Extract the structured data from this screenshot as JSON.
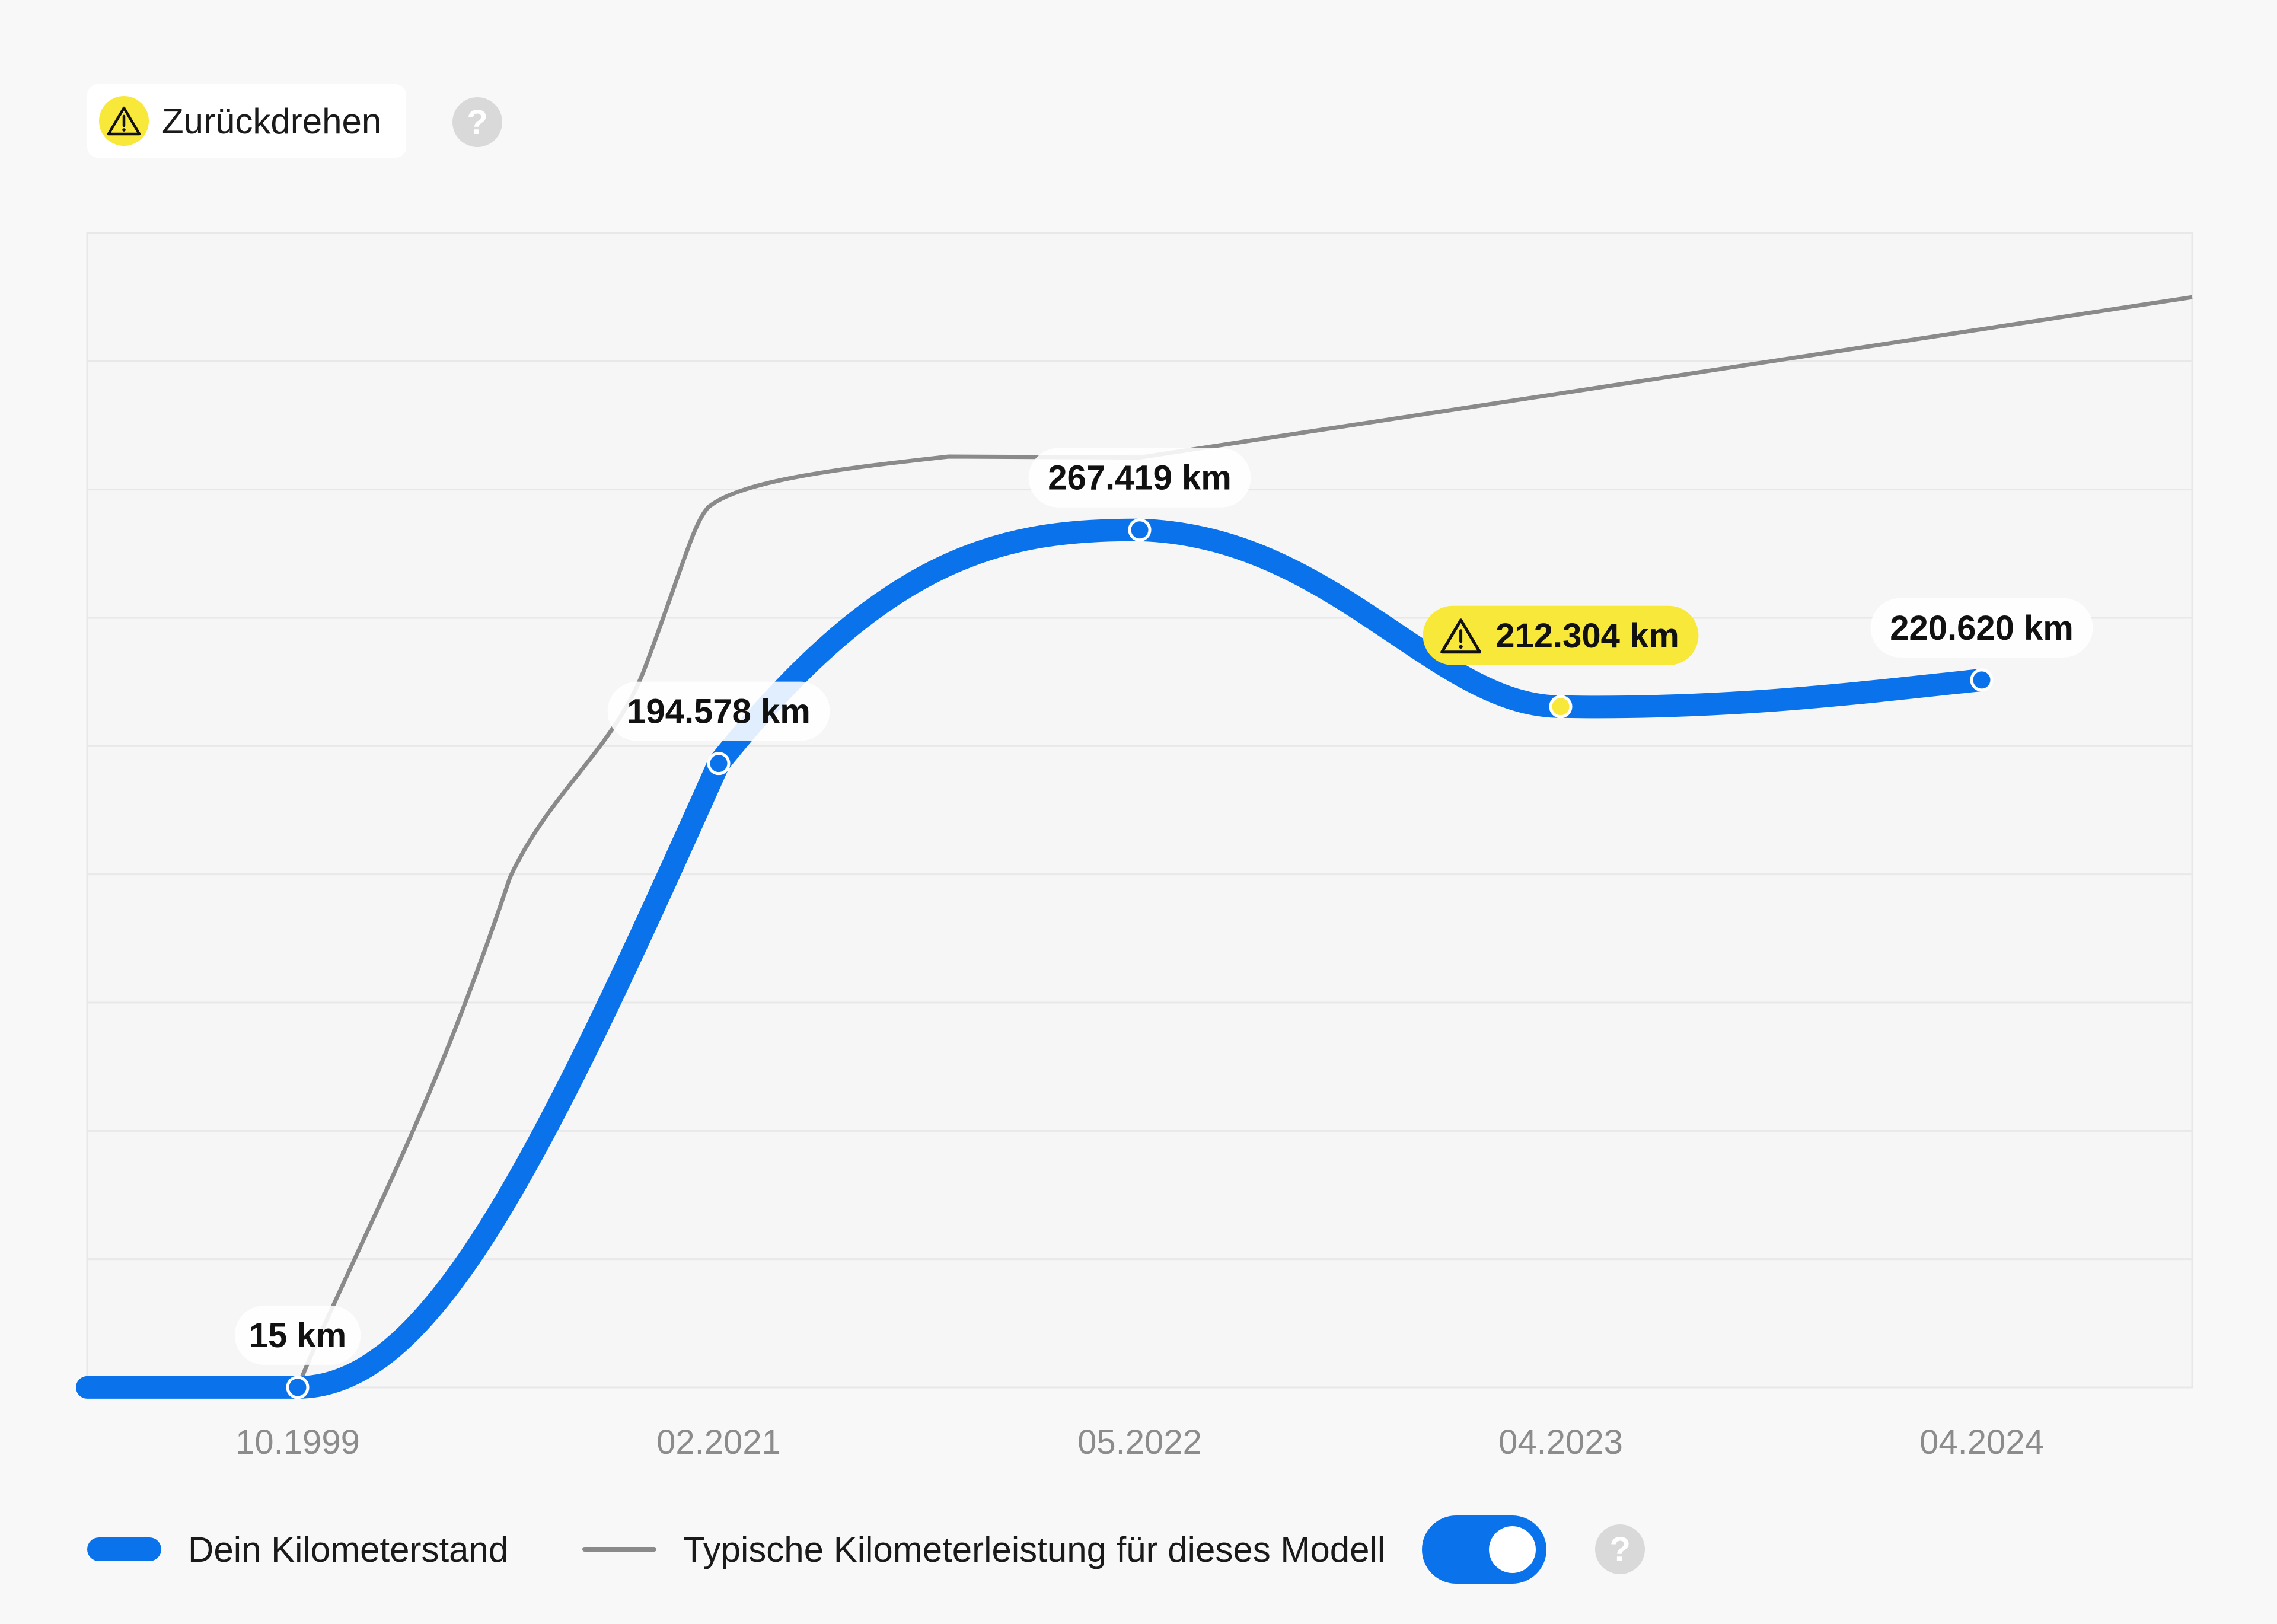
{
  "header": {
    "badge_label": "Zurückdrehen",
    "badge_icon": "warning-icon",
    "help_label": "?"
  },
  "colors": {
    "accent": "#0a73eb",
    "warning": "#f7e83a",
    "typical_line": "#8a8a8a",
    "grid": "#e8e8e8",
    "tick_text": "#8c8c8c"
  },
  "chart_data": {
    "type": "line",
    "categories": [
      "10.1999",
      "02.2021",
      "05.2022",
      "04.2023",
      "04.2024"
    ],
    "series": [
      {
        "name": "Dein Kilometerstand",
        "values": [
          15,
          194578,
          267419,
          212304,
          220620
        ],
        "labels": [
          "15 km",
          "194.578 km",
          "267.419 km",
          "212.304 km",
          "220.620 km"
        ],
        "flags": [
          false,
          false,
          false,
          true,
          false
        ]
      },
      {
        "name": "Typische Kilometerleistung für dieses Modell",
        "values": [
          15,
          275000,
          290000,
          310000,
          330000
        ]
      }
    ],
    "ylim": [
      0,
      360000
    ],
    "grid": true,
    "legend": "bottom-left",
    "ylabel": "",
    "xlabel": ""
  },
  "legend": {
    "series1_label": "Dein Kilometerstand",
    "series2_label": "Typische Kilometerleistung für dieses Modell",
    "toggle_on": true,
    "help_label": "?"
  }
}
